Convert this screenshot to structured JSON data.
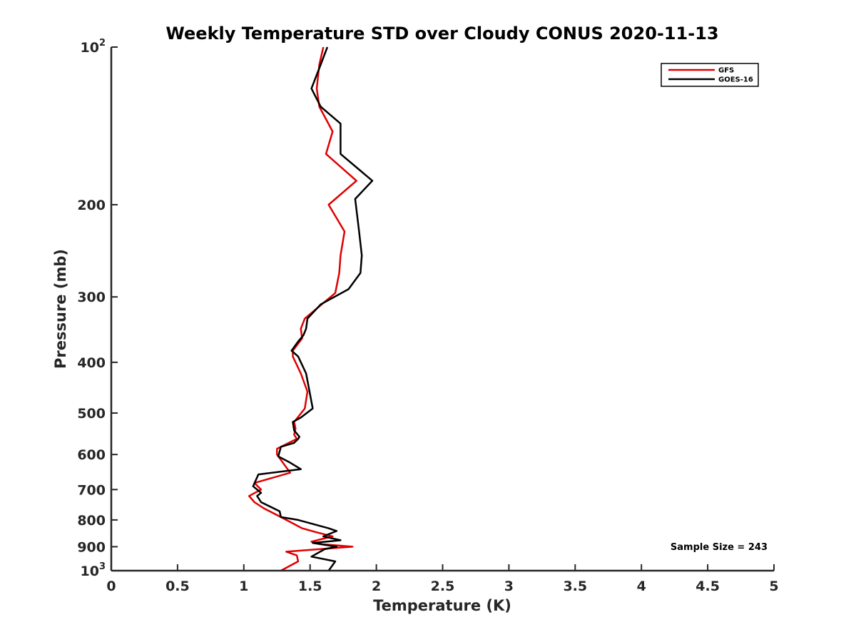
{
  "chart_data": {
    "type": "line",
    "title": "Weekly Temperature STD over Cloudy CONUS 2020-11-13",
    "xlabel": "Temperature (K)",
    "ylabel": "Pressure (mb)",
    "xlim": [
      0,
      5
    ],
    "ylim": [
      100,
      1000
    ],
    "y_scale": "log",
    "y_reversed": true,
    "grid": false,
    "legend_placement": "top-right",
    "x_ticks": [
      "0",
      "0.5",
      "1",
      "1.5",
      "2",
      "2.5",
      "3",
      "3.5",
      "4",
      "4.5",
      "5"
    ],
    "x_tick_values": [
      0,
      0.5,
      1,
      1.5,
      2,
      2.5,
      3,
      3.5,
      4,
      4.5,
      5
    ],
    "y_tick_values": [
      100,
      200,
      300,
      400,
      500,
      600,
      700,
      800,
      900,
      1000
    ],
    "y_ticks": [
      {
        "base": "10",
        "exp": "2"
      },
      {
        "base": "200",
        "exp": ""
      },
      {
        "base": "300",
        "exp": ""
      },
      {
        "base": "400",
        "exp": ""
      },
      {
        "base": "500",
        "exp": ""
      },
      {
        "base": "600",
        "exp": ""
      },
      {
        "base": "700",
        "exp": ""
      },
      {
        "base": "800",
        "exp": ""
      },
      {
        "base": "900",
        "exp": ""
      },
      {
        "base": "10",
        "exp": "3"
      }
    ],
    "annotation": "Sample Size = 243",
    "series": [
      {
        "name": "GFS",
        "color": "#e00000",
        "x": [
          1.6,
          1.57,
          1.55,
          1.57,
          1.67,
          1.62,
          1.85,
          1.64,
          1.76,
          1.73,
          1.72,
          1.69,
          1.46,
          1.43,
          1.44,
          1.37,
          1.37,
          1.43,
          1.48,
          1.46,
          1.38,
          1.39,
          1.38,
          1.4,
          1.25,
          1.25,
          1.35,
          1.08,
          1.13,
          1.04,
          1.08,
          1.15,
          1.28,
          1.44,
          1.55,
          1.67,
          1.59,
          1.51,
          1.59,
          1.82,
          1.32,
          1.4,
          1.41,
          1.28
        ],
        "y": [
          100,
          108,
          120,
          130,
          145,
          160,
          180,
          200,
          225,
          250,
          270,
          295,
          330,
          345,
          360,
          380,
          390,
          420,
          455,
          490,
          520,
          535,
          550,
          560,
          585,
          600,
          650,
          680,
          700,
          720,
          740,
          760,
          790,
          830,
          845,
          860,
          870,
          880,
          890,
          900,
          920,
          935,
          960,
          1000
        ]
      },
      {
        "name": "GOES-16",
        "color": "#000000",
        "x": [
          1.63,
          1.58,
          1.51,
          1.58,
          1.73,
          1.73,
          1.97,
          1.84,
          1.87,
          1.89,
          1.88,
          1.79,
          1.58,
          1.48,
          1.47,
          1.45,
          1.41,
          1.36,
          1.41,
          1.47,
          1.52,
          1.43,
          1.37,
          1.38,
          1.42,
          1.41,
          1.38,
          1.28,
          1.26,
          1.34,
          1.43,
          1.11,
          1.07,
          1.13,
          1.1,
          1.13,
          1.27,
          1.28,
          1.41,
          1.64,
          1.7,
          1.6,
          1.73,
          1.52,
          1.7,
          1.61,
          1.51,
          1.69,
          1.64
        ],
        "y": [
          100,
          108,
          120,
          130,
          140,
          160,
          180,
          195,
          225,
          250,
          270,
          290,
          310,
          330,
          345,
          355,
          365,
          380,
          390,
          420,
          490,
          510,
          520,
          540,
          555,
          560,
          570,
          580,
          605,
          620,
          640,
          655,
          690,
          710,
          720,
          740,
          770,
          790,
          800,
          830,
          840,
          860,
          875,
          885,
          900,
          910,
          940,
          960,
          1000
        ]
      }
    ]
  }
}
